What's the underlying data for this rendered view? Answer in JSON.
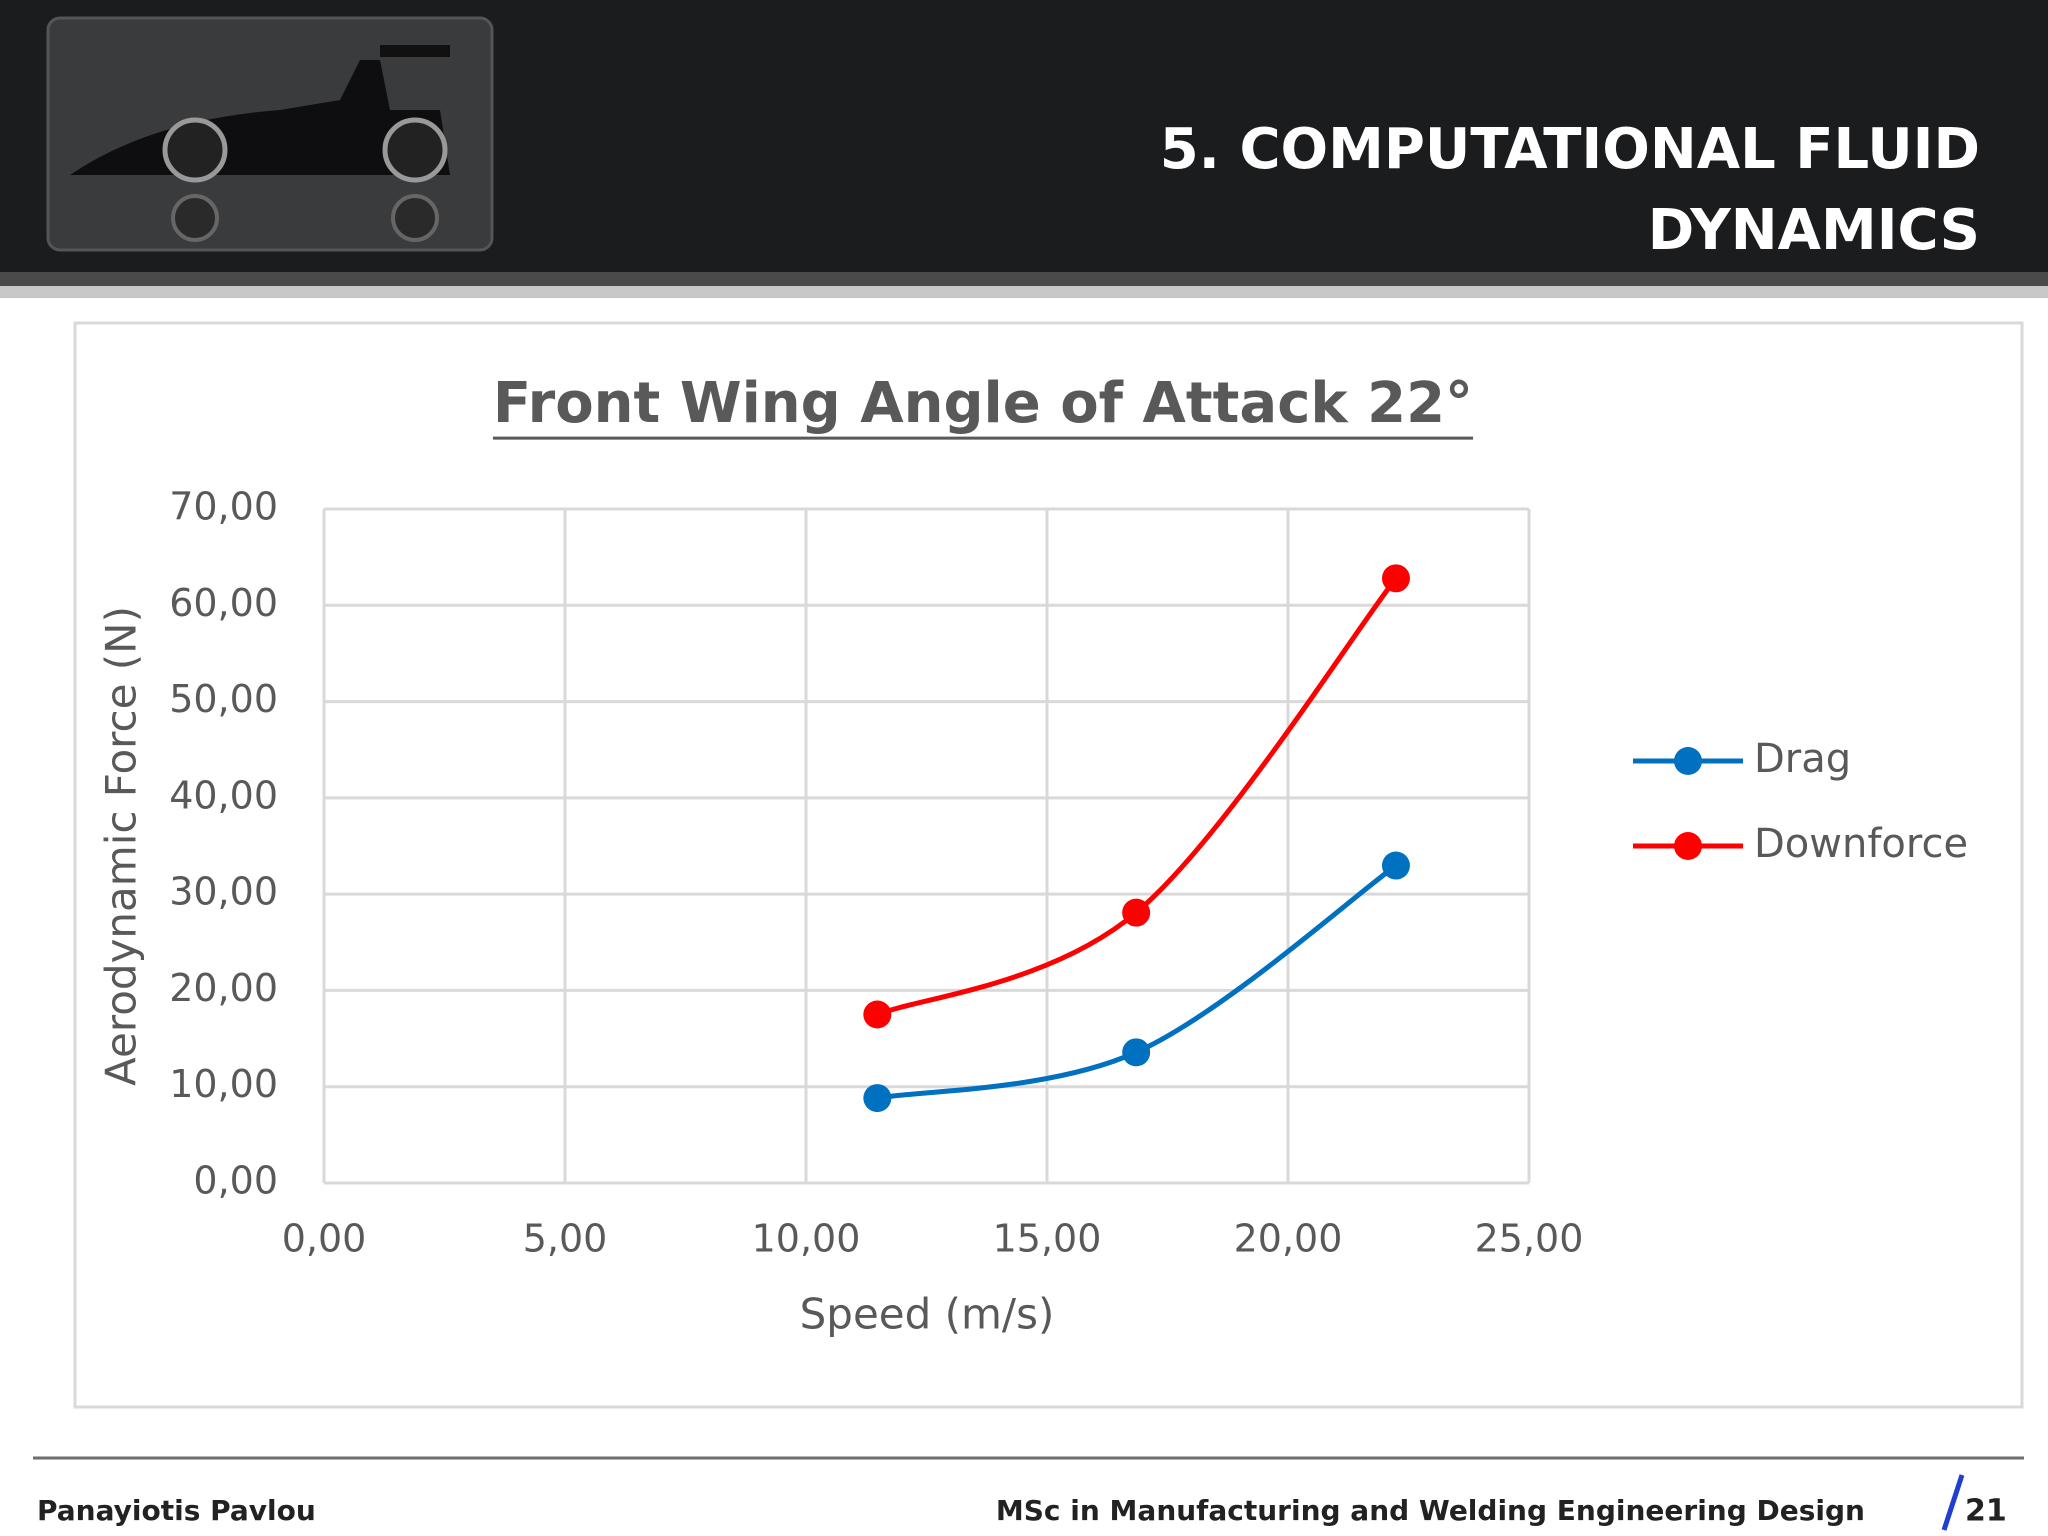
{
  "header": {
    "title_lines": [
      "5. COMPUTATIONAL FLUID",
      "DYNAMICS"
    ]
  },
  "chart_data": {
    "type": "line",
    "title": "Front Wing Angle of Attack 22°",
    "x_label": "Speed (m/s)",
    "y_label": "Aerodynamic Force (N)",
    "x": [
      11.48,
      16.85,
      22.24
    ],
    "series": [
      {
        "name": "Drag",
        "color": "#0070c0",
        "values": [
          8.82,
          13.57,
          32.97
        ]
      },
      {
        "name": "Downforce",
        "color": "#ff0000",
        "values": [
          17.5,
          28.08,
          62.8
        ]
      }
    ],
    "xlim": [
      0,
      25
    ],
    "ylim": [
      0,
      70
    ],
    "xticks": [
      {
        "value": 0,
        "label": "0,00"
      },
      {
        "value": 5,
        "label": "5,00"
      },
      {
        "value": 10,
        "label": "10,00"
      },
      {
        "value": 15,
        "label": "15,00"
      },
      {
        "value": 20,
        "label": "20,00"
      },
      {
        "value": 25,
        "label": "25,00"
      }
    ],
    "yticks": [
      {
        "value": 0,
        "label": "0,00"
      },
      {
        "value": 10,
        "label": "10,00"
      },
      {
        "value": 20,
        "label": "20,00"
      },
      {
        "value": 30,
        "label": "30,00"
      },
      {
        "value": 40,
        "label": "40,00"
      },
      {
        "value": 50,
        "label": "50,00"
      },
      {
        "value": 60,
        "label": "60,00"
      },
      {
        "value": 70,
        "label": "70,00"
      }
    ],
    "grid": true,
    "legend": "right",
    "smooth": true
  },
  "footer": {
    "author": "Panayiotis Pavlou",
    "program": "MSc in Manufacturing and Welding Engineering Design",
    "page": "21"
  }
}
